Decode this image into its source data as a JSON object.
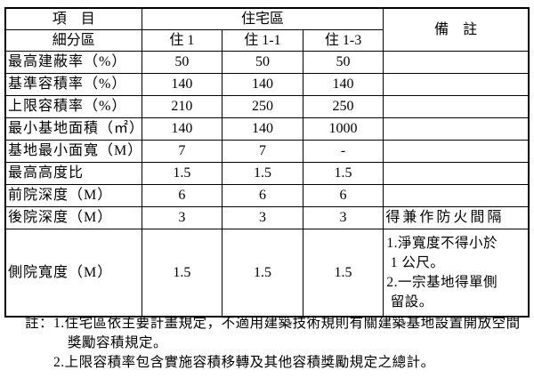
{
  "page": {
    "background": "#ffffff",
    "text_color": "#000000",
    "border_color": "#000000"
  },
  "table": {
    "header": {
      "item_label": "項　目",
      "zone_group_label": "住宅區",
      "remark_label": "備　註",
      "subdivision_label": "細分區",
      "zone_columns": [
        "住 1",
        "住 1-1",
        "住 1-3"
      ]
    },
    "rows": [
      {
        "label": "最高建蔽率（%）",
        "values": [
          "50",
          "50",
          "50"
        ],
        "remark": ""
      },
      {
        "label": "基準容積率（%）",
        "values": [
          "140",
          "140",
          "140"
        ],
        "remark": ""
      },
      {
        "label": "上限容積率（%）",
        "values": [
          "210",
          "250",
          "250"
        ],
        "remark": ""
      },
      {
        "label": "最小基地面積（㎡）",
        "values": [
          "140",
          "140",
          "1000"
        ],
        "remark": ""
      },
      {
        "label": "基地最小面寬（M）",
        "values": [
          "7",
          "7",
          "-"
        ],
        "remark": ""
      },
      {
        "label": "最高高度比",
        "values": [
          "1.5",
          "1.5",
          "1.5"
        ],
        "remark": ""
      },
      {
        "label": "前院深度（M）",
        "values": [
          "6",
          "6",
          "6"
        ],
        "remark": ""
      },
      {
        "label": "後院深度（M）",
        "values": [
          "3",
          "3",
          "3"
        ],
        "remark": "得兼作防火間隔"
      },
      {
        "label": "側院寬度（M）",
        "values": [
          "1.5",
          "1.5",
          "1.5"
        ],
        "remark": "1.淨寬度不得小於\n 1 公尺。\n2.一宗基地得單側\n 留設。"
      }
    ]
  },
  "footnotes": {
    "lines": [
      "註：1.住宅區依主要計畫規定，不適用建築技術規則有關建築基地設置開放空間",
      "獎勵容積規定。",
      "2.上限容積率包含實施容積移轉及其他容積獎勵規定之總計。"
    ]
  }
}
